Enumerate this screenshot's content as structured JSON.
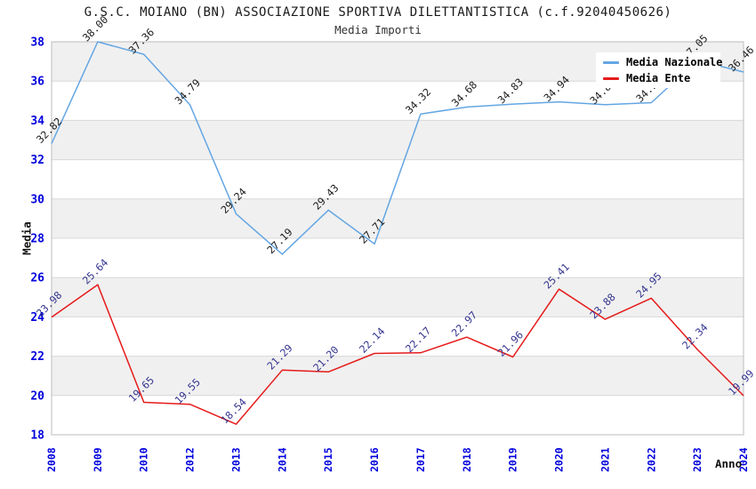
{
  "header": {
    "title": "G.S.C. MOIANO (BN) ASSOCIAZIONE SPORTIVA DILETTANTISTICA (c.f.92040450626)",
    "subtitle": "Media Importi"
  },
  "axes": {
    "y_title": "Media",
    "x_title": "Anno"
  },
  "legend": {
    "entries": [
      {
        "label": "Media Nazionale",
        "color": "#64a6e3"
      },
      {
        "label": "Media Ente",
        "color": "#e51b1b"
      }
    ]
  },
  "chart_data": {
    "type": "line",
    "title": "G.S.C. MOIANO (BN) ASSOCIAZIONE SPORTIVA DILETTANTISTICA (c.f.92040450626)",
    "subtitle": "Media Importi",
    "xlabel": "Anno",
    "ylabel": "Media",
    "ylim": [
      18,
      38
    ],
    "y_step": 2,
    "grid": "horizontal",
    "legend_position": "top-right-inside",
    "categories": [
      "2008",
      "2009",
      "2010",
      "2012",
      "2013",
      "2014",
      "2015",
      "2016",
      "2017",
      "2018",
      "2019",
      "2020",
      "2021",
      "2022",
      "2023",
      "2024"
    ],
    "series": [
      {
        "name": "Media Nazionale",
        "color": "#64a6e3",
        "label_color": "#1a1a1a",
        "values": [
          32.82,
          38.0,
          37.36,
          34.79,
          29.24,
          27.19,
          29.43,
          27.71,
          34.32,
          34.68,
          34.83,
          34.94,
          34.8,
          34.9,
          37.05,
          36.46
        ]
      },
      {
        "name": "Media Ente",
        "color": "#e51b1b",
        "label_color": "#33338f",
        "values": [
          23.98,
          25.64,
          19.65,
          19.55,
          18.54,
          21.29,
          21.2,
          22.14,
          22.17,
          22.97,
          21.96,
          25.41,
          23.88,
          24.95,
          22.34,
          19.99
        ]
      }
    ],
    "style": {
      "band_color": "#f0f0f0",
      "grid_color": "#d8d8d8",
      "border_color": "#bdbdbd",
      "tick_color": "#0000dd"
    }
  }
}
